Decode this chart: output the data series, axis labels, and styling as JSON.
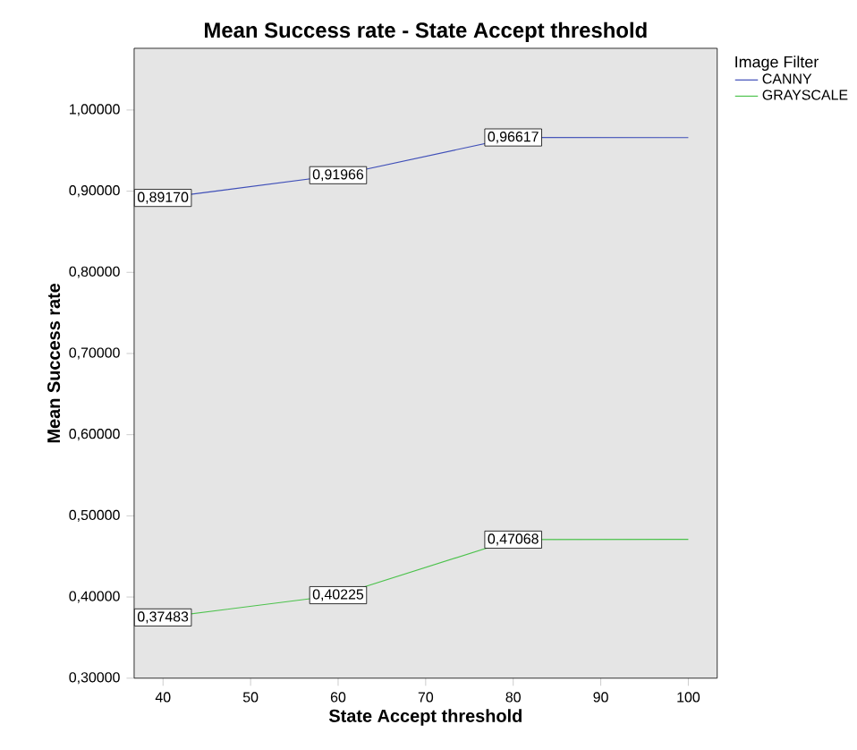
{
  "chart_data": {
    "type": "line",
    "title": "Mean Success rate - State Accept threshold",
    "xlabel": "State Accept threshold",
    "ylabel": "Mean Success rate",
    "legend_title": "Image Filter",
    "x": [
      40,
      60,
      80,
      100
    ],
    "series": [
      {
        "name": "CANNY",
        "color": "#3f4fb8",
        "values": [
          0.8917,
          0.91966,
          0.96617,
          0.966
        ],
        "value_labels": [
          "0,89170",
          "0,91966",
          "0,96617",
          null
        ]
      },
      {
        "name": "GRAYSCALE",
        "color": "#4cc24c",
        "values": [
          0.37483,
          0.40225,
          0.47068,
          0.471
        ],
        "value_labels": [
          "0,37483",
          "0,40225",
          "0,47068",
          null
        ]
      }
    ],
    "xlim": [
      36.7,
      103.3
    ],
    "xticks": [
      40,
      50,
      60,
      70,
      80,
      90,
      100
    ],
    "ylim": [
      0.3,
      1.076
    ],
    "yticks": [
      {
        "value": 0.3,
        "label": "0,30000"
      },
      {
        "value": 0.4,
        "label": "0,40000"
      },
      {
        "value": 0.5,
        "label": "0,50000"
      },
      {
        "value": 0.6,
        "label": "0,60000"
      },
      {
        "value": 0.7,
        "label": "0,70000"
      },
      {
        "value": 0.8,
        "label": "0,80000"
      },
      {
        "value": 0.9,
        "label": "0,90000"
      },
      {
        "value": 1.0,
        "label": "1,00000"
      }
    ],
    "grid": false,
    "legend": "top right",
    "line_style": "solid"
  }
}
